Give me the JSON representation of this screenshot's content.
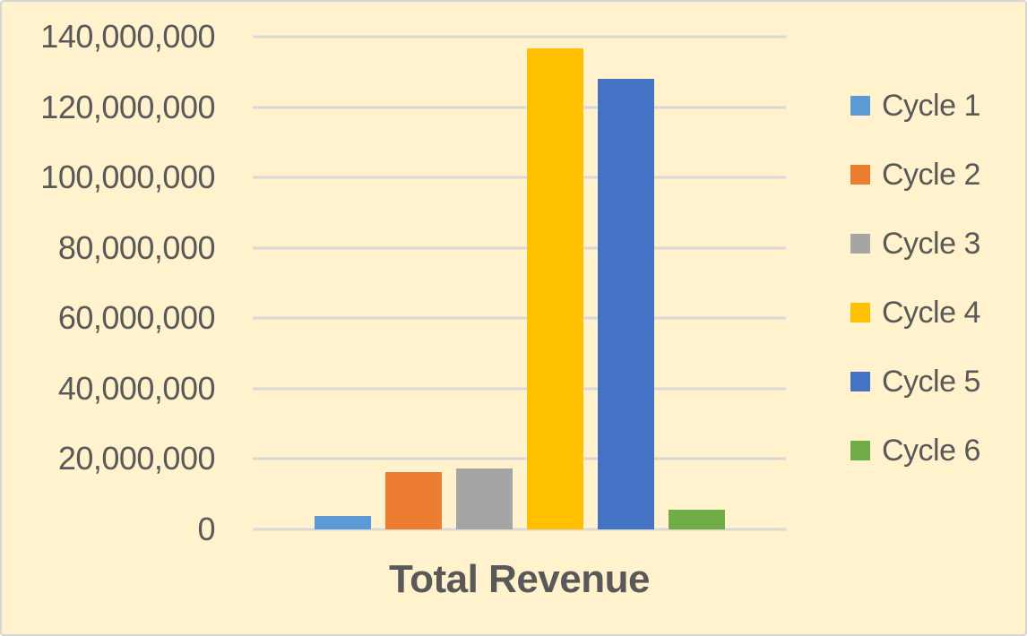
{
  "chart": {
    "background_color": "#FFF2CC",
    "border_color": "#D6D6D6",
    "text_color": "#595959",
    "gridline_color": "#D9D9D9"
  },
  "chart_data": {
    "type": "bar",
    "title": "Total Revenue",
    "xlabel": "Total Revenue",
    "ylabel": "",
    "categories": [
      "Total Revenue"
    ],
    "series": [
      {
        "name": "Cycle 1",
        "value": 3700000,
        "color": "#5B9BD5"
      },
      {
        "name": "Cycle 2",
        "value": 16200000,
        "color": "#ED7D31"
      },
      {
        "name": "Cycle 3",
        "value": 17400000,
        "color": "#A5A5A5"
      },
      {
        "name": "Cycle 4",
        "value": 136600000,
        "color": "#FFC000"
      },
      {
        "name": "Cycle 5",
        "value": 128100000,
        "color": "#4472C4"
      },
      {
        "name": "Cycle 6",
        "value": 5700000,
        "color": "#70AD47"
      }
    ],
    "ylim": [
      0,
      140000000
    ],
    "ytick_interval": 20000000,
    "ytick_labels": [
      "140,000,000",
      "120,000,000",
      "100,000,000",
      "80,000,000",
      "60,000,000",
      "40,000,000",
      "20,000,000",
      "0"
    ],
    "grid": true,
    "legend_position": "right"
  }
}
